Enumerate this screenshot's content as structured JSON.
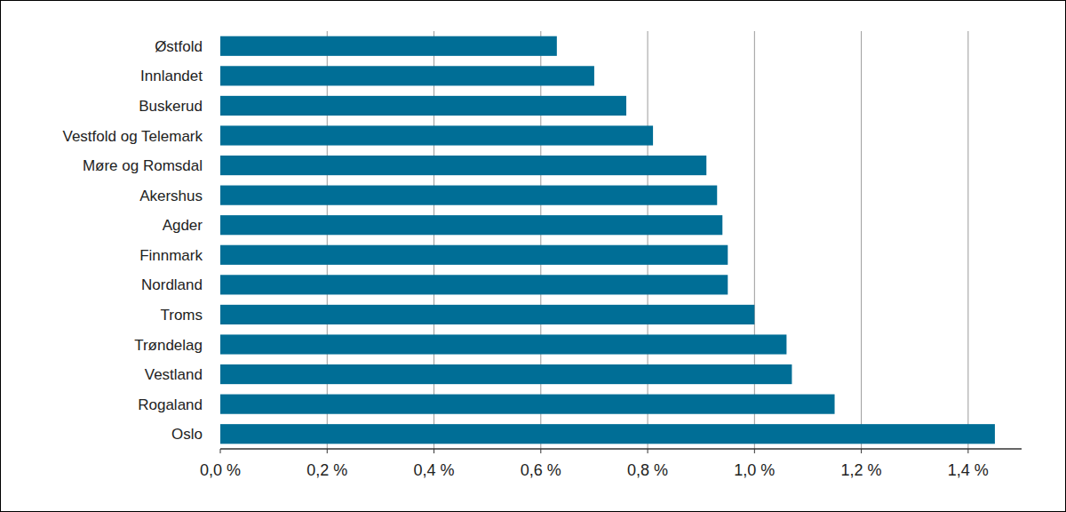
{
  "chart_data": {
    "type": "bar",
    "orientation": "horizontal",
    "categories": [
      "Østfold",
      "Innlandet",
      "Buskerud",
      "Vestfold og Telemark",
      "Møre og Romsdal",
      "Akershus",
      "Agder",
      "Finnmark",
      "Nordland",
      "Troms",
      "Trøndelag",
      "Vestland",
      "Rogaland",
      "Oslo"
    ],
    "values": [
      0.63,
      0.7,
      0.76,
      0.81,
      0.91,
      0.93,
      0.94,
      0.95,
      0.95,
      1.0,
      1.06,
      1.07,
      1.15,
      1.45
    ],
    "color": "#006e96",
    "xlim": [
      0,
      1.5
    ],
    "xticks": [
      {
        "value": 0,
        "label": "0,0 %"
      },
      {
        "value": 0.2,
        "label": "0,2 %"
      },
      {
        "value": 0.4,
        "label": "0,4 %"
      },
      {
        "value": 0.6,
        "label": "0,6 %"
      },
      {
        "value": 0.8,
        "label": "0,8 %"
      },
      {
        "value": 1.0,
        "label": "1,0 %"
      },
      {
        "value": 1.2,
        "label": "1,2 %"
      },
      {
        "value": 1.4,
        "label": "1,4 %"
      }
    ],
    "grid": true
  }
}
